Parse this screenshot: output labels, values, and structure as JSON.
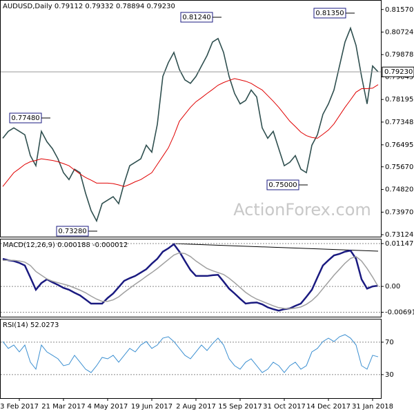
{
  "chart_data": [
    {
      "type": "line",
      "title": "AUDUSD,Daily  0.79112 0.79332 0.78894 0.79230",
      "watermark": "ActionForex.com",
      "series": [
        {
          "color": "#2f4f4f",
          "values": [
            0.7674,
            0.77,
            0.7713,
            0.77,
            0.7687,
            0.7609,
            0.7571,
            0.77,
            0.7661,
            0.7635,
            0.7597,
            0.7545,
            0.7519,
            0.7558,
            0.7545,
            0.7468,
            0.7403,
            0.7364,
            0.7429,
            0.7442,
            0.7455,
            0.7429,
            0.7506,
            0.7571,
            0.7584,
            0.7597,
            0.7648,
            0.7622,
            0.7726,
            0.7906,
            0.7958,
            0.7996,
            0.7932,
            0.7893,
            0.788,
            0.7906,
            0.7945,
            0.7984,
            0.8035,
            0.8048,
            0.7996,
            0.7906,
            0.7842,
            0.7803,
            0.7816,
            0.7855,
            0.7829,
            0.7713,
            0.7674,
            0.77,
            0.7635,
            0.7571,
            0.7584,
            0.7609,
            0.7558,
            0.7545,
            0.7648,
            0.7687,
            0.7764,
            0.7803,
            0.7855,
            0.7945,
            0.8035,
            0.8087,
            0.8022,
            0.7906,
            0.7803,
            0.7945,
            0.7923
          ]
        },
        {
          "color": "#e00000",
          "values": [
            0.7493,
            0.7519,
            0.7545,
            0.756,
            0.7576,
            0.7586,
            0.7591,
            0.7597,
            0.7594,
            0.7591,
            0.7586,
            0.7579,
            0.7571,
            0.7555,
            0.754,
            0.7527,
            0.7517,
            0.7506,
            0.7506,
            0.7506,
            0.7504,
            0.7499,
            0.7493,
            0.7501,
            0.7511,
            0.7519,
            0.7532,
            0.7545,
            0.7576,
            0.7607,
            0.7638,
            0.7684,
            0.7738,
            0.7764,
            0.779,
            0.7811,
            0.7826,
            0.7842,
            0.7857,
            0.7873,
            0.7883,
            0.7891,
            0.7898,
            0.7893,
            0.7888,
            0.788,
            0.7867,
            0.7855,
            0.7834,
            0.7813,
            0.779,
            0.7764,
            0.7738,
            0.7718,
            0.7697,
            0.7684,
            0.7677,
            0.7674,
            0.7689,
            0.7705,
            0.7728,
            0.7759,
            0.779,
            0.7818,
            0.7847,
            0.786,
            0.786,
            0.7862,
            0.7875
          ]
        }
      ],
      "last_price": {
        "value": 0.7923,
        "label": "0.79230"
      },
      "annotations": [
        {
          "value": 0.8124,
          "label": "0.81240"
        },
        {
          "value": 0.8135,
          "label": "0.81350"
        },
        {
          "value": 0.7748,
          "label": "0.77480"
        },
        {
          "value": 0.75,
          "label": "0.75000"
        },
        {
          "value": 0.7328,
          "label": "0.73280"
        }
      ],
      "ylim": [
        0.7305,
        0.819
      ],
      "yticks": [
        {
          "value": 0.8157,
          "label": "0.81570"
        },
        {
          "value": 0.80724,
          "label": "0.80724"
        },
        {
          "value": 0.79878,
          "label": "0.79878"
        },
        {
          "value": 0.79045,
          "label": "0.79045"
        },
        {
          "value": 0.78195,
          "label": "0.78195"
        },
        {
          "value": 0.77348,
          "label": "0.77348"
        },
        {
          "value": 0.76495,
          "label": "0.76495"
        },
        {
          "value": 0.7567,
          "label": "0.75670"
        },
        {
          "value": 0.7482,
          "label": "0.74820"
        },
        {
          "value": 0.7397,
          "label": "0.73970"
        },
        {
          "value": 0.73124,
          "label": "0.73124"
        }
      ],
      "grid": false
    },
    {
      "type": "line",
      "title": "MACD(12,26,9) 0.000188 -0.000012",
      "series": [
        {
          "color": "#1a1a80",
          "values": [
            0.0074,
            0.007,
            0.0068,
            0.0063,
            0.0056,
            0.0024,
            -0.0009,
            0.0009,
            0.0019,
            0.0011,
            0.0004,
            -0.0004,
            -0.0009,
            -0.0017,
            -0.0024,
            -0.0035,
            -0.0046,
            -0.0046,
            -0.0046,
            -0.0031,
            -0.0019,
            -0.0002,
            0.0015,
            0.0022,
            0.0028,
            0.0037,
            0.0046,
            0.0061,
            0.0074,
            0.0093,
            0.0102,
            0.0113,
            0.0093,
            0.0068,
            0.0044,
            0.0028,
            0.0028,
            0.0028,
            0.003,
            0.0031,
            0.0013,
            -0.0006,
            -0.0019,
            -0.0033,
            -0.0046,
            -0.0044,
            -0.0043,
            -0.0048,
            -0.0056,
            -0.0061,
            -0.0065,
            -0.0061,
            -0.0059,
            -0.0052,
            -0.0046,
            -0.0028,
            -0.0009,
            0.0024,
            0.0056,
            0.007,
            0.0083,
            0.0087,
            0.0093,
            0.0096,
            0.0074,
            0.0019,
            -0.0006,
            0,
            0.0002
          ]
        },
        {
          "color": "#a0a0a0",
          "values": [
            0.007,
            0.007,
            0.007,
            0.0068,
            0.0065,
            0.0056,
            0.004,
            0.003,
            0.002,
            0.0014,
            0.001,
            0.0006,
            0.0002,
            -0.0004,
            -0.001,
            -0.0017,
            -0.0026,
            -0.0034,
            -0.004,
            -0.004,
            -0.0036,
            -0.0028,
            -0.0016,
            -0.0005,
            0.0006,
            0.0016,
            0.0027,
            0.0037,
            0.0048,
            0.006,
            0.0072,
            0.0084,
            0.009,
            0.0088,
            0.008,
            0.0068,
            0.0058,
            0.0048,
            0.0042,
            0.0037,
            0.0032,
            0.0022,
            0.001,
            -0.0003,
            -0.0016,
            -0.0026,
            -0.0034,
            -0.004,
            -0.0046,
            -0.0052,
            -0.0057,
            -0.0059,
            -0.006,
            -0.0058,
            -0.0055,
            -0.0048,
            -0.0038,
            -0.0024,
            -0.0006,
            0.0012,
            0.003,
            0.0046,
            0.0062,
            0.0075,
            0.008,
            0.0068,
            0.0048,
            0.0025,
            0
          ]
        }
      ],
      "ylim": [
        -0.0083,
        0.01258
      ],
      "yticks": [
        0.011471,
        {
          "value": 0,
          "label": "0.00"
        },
        -0.006913
      ],
      "grid": true
    },
    {
      "type": "line",
      "title": "RSI(14) 52.0273",
      "series": [
        {
          "color": "#3b8fd1",
          "values": [
            70.8,
            62.3,
            66.5,
            58.0,
            66.5,
            45.3,
            36.7,
            66.5,
            58.0,
            53.8,
            49.5,
            41.0,
            42.7,
            53.8,
            45.3,
            36.7,
            32.5,
            41.0,
            51.2,
            49.5,
            53.8,
            45.3,
            53.8,
            62.3,
            58.0,
            66.5,
            70.8,
            62.3,
            66.5,
            75.0,
            76.7,
            70.8,
            62.3,
            53.8,
            49.5,
            58.0,
            66.5,
            59.7,
            68.2,
            75.0,
            66.5,
            49.5,
            41.0,
            36.7,
            45.3,
            49.5,
            41.0,
            32.5,
            36.7,
            45.3,
            41.0,
            32.5,
            41.0,
            45.3,
            36.7,
            41.0,
            58.0,
            62.3,
            70.8,
            75.0,
            70.8,
            76.7,
            79.3,
            75.0,
            66.5,
            41.0,
            36.7,
            53.8,
            52.0
          ]
        }
      ],
      "categories": [
        null,
        null,
        null,
        "3 Feb 2017",
        null,
        null,
        null,
        null,
        null,
        null,
        null,
        "21 Mar 2017",
        null,
        null,
        null,
        null,
        null,
        null,
        null,
        "4 May 2017",
        null,
        null,
        null,
        null,
        null,
        null,
        null,
        "19 Jun 2017",
        null,
        null,
        null,
        null,
        null,
        null,
        null,
        "2 Aug 2017",
        null,
        null,
        null,
        null,
        null,
        null,
        null,
        "15 Sep 2017",
        null,
        null,
        null,
        null,
        null,
        null,
        null,
        "31 Oct 2017",
        null,
        null,
        null,
        null,
        null,
        null,
        null,
        "14 Dec 2017",
        null,
        null,
        null,
        null,
        null,
        null,
        null,
        "31 Jan 2018",
        null
      ],
      "ylim": [
        1,
        98
      ],
      "yticks": [
        70,
        30
      ],
      "grid": true
    }
  ]
}
